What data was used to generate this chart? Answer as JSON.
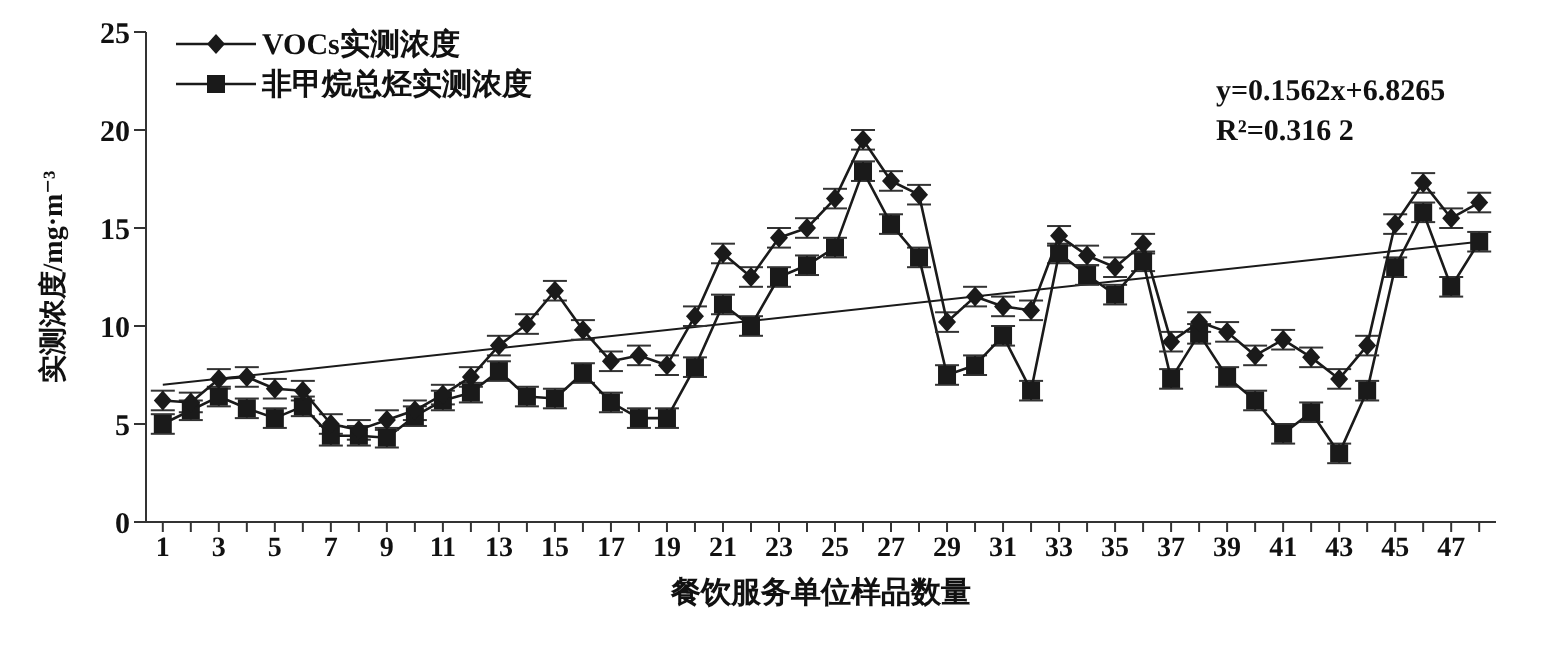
{
  "chart_data": {
    "type": "line",
    "xlabel": "餐饮服务单位样品数量",
    "ylabel": "实测浓度/mg·m⁻³",
    "x": [
      1,
      2,
      3,
      4,
      5,
      6,
      7,
      8,
      9,
      10,
      11,
      12,
      13,
      14,
      15,
      16,
      17,
      18,
      19,
      20,
      21,
      22,
      23,
      24,
      25,
      26,
      27,
      28,
      29,
      30,
      31,
      32,
      33,
      34,
      35,
      36,
      37,
      38,
      39,
      40,
      41,
      42,
      43,
      44,
      45,
      46,
      47,
      48
    ],
    "series": [
      {
        "name": "VOCs实测浓度",
        "color": "#1a1a1a",
        "marker": "diamond",
        "values": [
          6.2,
          6.1,
          7.3,
          7.4,
          6.8,
          6.7,
          5.0,
          4.7,
          5.2,
          5.7,
          6.5,
          7.4,
          9.0,
          10.1,
          11.8,
          9.8,
          8.2,
          8.5,
          8.0,
          10.5,
          13.7,
          12.5,
          14.5,
          15.0,
          16.5,
          19.5,
          17.4,
          16.7,
          10.2,
          11.5,
          11.0,
          10.8,
          14.6,
          13.6,
          13.0,
          14.2,
          9.2,
          10.2,
          9.7,
          8.5,
          9.3,
          8.4,
          7.3,
          9.0,
          15.2,
          17.3,
          15.5,
          16.3
        ],
        "errors": [
          0.5,
          0.5,
          0.5,
          0.5,
          0.5,
          0.5,
          0.5,
          0.5,
          0.5,
          0.5,
          0.5,
          0.5,
          0.5,
          0.5,
          0.5,
          0.5,
          0.5,
          0.5,
          0.5,
          0.5,
          0.5,
          0.5,
          0.5,
          0.5,
          0.5,
          0.5,
          0.5,
          0.5,
          0.5,
          0.5,
          0.5,
          0.5,
          0.5,
          0.5,
          0.5,
          0.5,
          0.5,
          0.5,
          0.5,
          0.5,
          0.5,
          0.5,
          0.5,
          0.5,
          0.5,
          0.5,
          0.5,
          0.5
        ]
      },
      {
        "name": "非甲烷总烃实测浓度",
        "color": "#1a1a1a",
        "marker": "square",
        "values": [
          5.0,
          5.7,
          6.4,
          5.8,
          5.3,
          5.9,
          4.4,
          4.4,
          4.3,
          5.4,
          6.2,
          6.6,
          7.7,
          6.4,
          6.3,
          7.6,
          6.1,
          5.3,
          5.3,
          7.9,
          11.1,
          10.0,
          12.5,
          13.1,
          14.0,
          17.9,
          15.2,
          13.5,
          7.5,
          8.0,
          9.5,
          6.7,
          13.7,
          12.6,
          11.6,
          13.3,
          7.3,
          9.6,
          7.4,
          6.2,
          4.5,
          5.6,
          3.5,
          6.7,
          13.0,
          15.8,
          12.0,
          14.3
        ],
        "errors": [
          0.5,
          0.5,
          0.5,
          0.5,
          0.5,
          0.5,
          0.5,
          0.5,
          0.5,
          0.5,
          0.5,
          0.5,
          0.5,
          0.5,
          0.5,
          0.5,
          0.5,
          0.5,
          0.5,
          0.5,
          0.5,
          0.5,
          0.5,
          0.5,
          0.5,
          0.5,
          0.5,
          0.5,
          0.5,
          0.5,
          0.5,
          0.5,
          0.5,
          0.5,
          0.5,
          0.5,
          0.5,
          0.5,
          0.5,
          0.5,
          0.5,
          0.5,
          0.5,
          0.5,
          0.5,
          0.5,
          0.5,
          0.5
        ]
      },
      {
        "type": "line",
        "color": "#1a1a1a",
        "marker": "none",
        "x": [
          1,
          48
        ],
        "values": [
          7.0,
          14.3
        ]
      }
    ],
    "annotations": [
      "y=0.1562x+6.8265",
      "R²=0.316 2"
    ],
    "xlim": [
      0.4,
      48.6
    ],
    "xticks": [
      1,
      {
        "value": 2,
        "label": null
      },
      3,
      {
        "value": 4,
        "label": null
      },
      5,
      {
        "value": 6,
        "label": null
      },
      7,
      {
        "value": 8,
        "label": null
      },
      9,
      {
        "value": 10,
        "label": null
      },
      11,
      {
        "value": 12,
        "label": null
      },
      13,
      {
        "value": 14,
        "label": null
      },
      15,
      {
        "value": 16,
        "label": null
      },
      17,
      {
        "value": 18,
        "label": null
      },
      19,
      {
        "value": 20,
        "label": null
      },
      21,
      {
        "value": 22,
        "label": null
      },
      23,
      {
        "value": 24,
        "label": null
      },
      25,
      {
        "value": 26,
        "label": null
      },
      27,
      {
        "value": 28,
        "label": null
      },
      29,
      {
        "value": 30,
        "label": null
      },
      31,
      {
        "value": 32,
        "label": null
      },
      33,
      {
        "value": 34,
        "label": null
      },
      35,
      {
        "value": 36,
        "label": null
      },
      37,
      {
        "value": 38,
        "label": null
      },
      39,
      {
        "value": 40,
        "label": null
      },
      41,
      {
        "value": 42,
        "label": null
      },
      43,
      {
        "value": 44,
        "label": null
      },
      45,
      {
        "value": 46,
        "label": null
      },
      47,
      {
        "value": 48,
        "label": null
      }
    ],
    "ylim": [
      0,
      25
    ],
    "yticks": [
      0,
      5,
      10,
      15,
      20,
      25
    ],
    "legend": "top left",
    "grid": false
  }
}
